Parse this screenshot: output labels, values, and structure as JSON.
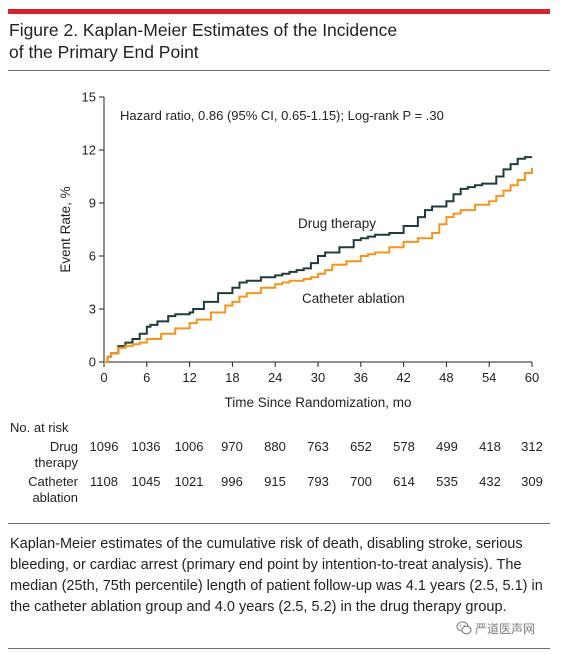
{
  "figure": {
    "title_line1": "Figure 2. Kaplan-Meier Estimates of the Incidence",
    "title_line2": "of the Primary End Point",
    "accent_color": "#d7232f"
  },
  "chart_data": {
    "type": "line",
    "step": true,
    "annotation": "Hazard ratio, 0.86 (95% CI, 0.65-1.15); Log-rank P = .30",
    "xlabel": "Time Since Randomization, mo",
    "ylabel": "Event Rate, %",
    "xlim": [
      0,
      60
    ],
    "ylim": [
      0,
      15
    ],
    "xticks": [
      0,
      6,
      12,
      18,
      24,
      30,
      36,
      42,
      48,
      54,
      60
    ],
    "yticks": [
      0,
      3,
      6,
      9,
      12,
      15
    ],
    "grid": false,
    "series": [
      {
        "name": "Drug therapy",
        "color": "#1f3b3b",
        "x": [
          0,
          0.5,
          1,
          2,
          3,
          4,
          5,
          6,
          6.5,
          7.5,
          9,
          10,
          12,
          12.5,
          14,
          16,
          18,
          19,
          20,
          22,
          24,
          25,
          26,
          27,
          28,
          29,
          30,
          31,
          33,
          35,
          36,
          37,
          38,
          40,
          42,
          44,
          45,
          46,
          48,
          49,
          50,
          51,
          52,
          53,
          55,
          56,
          57,
          58,
          59,
          60
        ],
        "values": [
          0,
          0.3,
          0.5,
          0.9,
          1.1,
          1.3,
          1.6,
          2.0,
          2.1,
          2.3,
          2.6,
          2.7,
          2.8,
          3.0,
          3.4,
          3.9,
          4.2,
          4.5,
          4.6,
          4.8,
          4.9,
          5.0,
          5.1,
          5.2,
          5.3,
          5.6,
          6.0,
          6.2,
          6.5,
          6.9,
          7.0,
          7.1,
          7.2,
          7.3,
          7.7,
          8.2,
          8.6,
          8.8,
          9.1,
          9.5,
          9.8,
          9.9,
          10.0,
          10.1,
          10.5,
          10.9,
          11.2,
          11.5,
          11.6,
          11.6
        ]
      },
      {
        "name": "Catheter ablation",
        "color": "#f7941d",
        "x": [
          0,
          0.5,
          1,
          2,
          3,
          4,
          5,
          6,
          8,
          10,
          12,
          13,
          15,
          17,
          18,
          19,
          20,
          22,
          24,
          25,
          26,
          28,
          29,
          30,
          31,
          32,
          34,
          36,
          37,
          38,
          40,
          42,
          44,
          46,
          47,
          48,
          49,
          50,
          52,
          54,
          55,
          56,
          57,
          58,
          59,
          60
        ],
        "values": [
          0,
          0.3,
          0.5,
          0.8,
          0.9,
          1.0,
          1.1,
          1.3,
          1.6,
          1.9,
          2.2,
          2.4,
          2.8,
          3.2,
          3.4,
          3.7,
          3.9,
          4.2,
          4.4,
          4.5,
          4.6,
          4.7,
          4.8,
          5.0,
          5.2,
          5.5,
          5.7,
          6.0,
          6.1,
          6.2,
          6.5,
          6.8,
          7.0,
          7.3,
          7.8,
          8.2,
          8.4,
          8.6,
          8.9,
          9.1,
          9.4,
          9.7,
          10.0,
          10.3,
          10.7,
          11.0
        ]
      }
    ]
  },
  "risk_table": {
    "header": "No. at risk",
    "rows": [
      {
        "label_line1": "Drug",
        "label_line2": "therapy",
        "values": [
          "1096",
          "1036",
          "1006",
          "970",
          "880",
          "763",
          "652",
          "578",
          "499",
          "418",
          "312"
        ]
      },
      {
        "label_line1": "Catheter",
        "label_line2": "ablation",
        "values": [
          "1108",
          "1045",
          "1021",
          "996",
          "915",
          "793",
          "700",
          "614",
          "535",
          "432",
          "309"
        ]
      }
    ]
  },
  "caption": "Kaplan-Meier estimates of the cumulative risk of death, disabling stroke, serious bleeding, or cardiac arrest (primary end point by intention-to-treat analysis). The median (25th, 75th percentile) length of patient follow-up was 4.1 years (2.5, 5.1) in the catheter ablation group and 4.0 years (2.5, 5.2) in the drug therapy group.",
  "watermark": {
    "text": "严道医声网",
    "icon": "wechat-icon"
  }
}
